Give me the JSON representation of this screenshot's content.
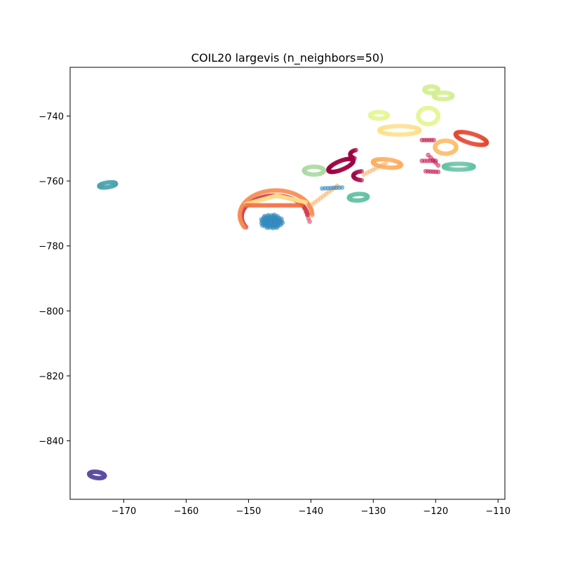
{
  "chart_data": {
    "type": "scatter",
    "title": "COIL20 largevis (n_neighbors=50)",
    "xlabel": "",
    "ylabel": "",
    "xlim": [
      -178.6,
      -108.9
    ],
    "ylim": [
      -858.0,
      -725.0
    ],
    "xticks": [
      -170,
      -160,
      -150,
      -140,
      -130,
      -120,
      -110
    ],
    "yticks": [
      -840,
      -820,
      -800,
      -780,
      -760,
      -740
    ],
    "xtick_labels": [
      "−170",
      "−160",
      "−150",
      "−140",
      "−130",
      "−120",
      "−110"
    ],
    "ytick_labels": [
      "−840",
      "−820",
      "−800",
      "−780",
      "−760",
      "−740"
    ],
    "grid": false,
    "legend": "none",
    "marker_opacity": 0.55,
    "series": [
      {
        "color": "#5e4fa2",
        "shape": "loop",
        "center": [
          -174.3,
          -850.5
        ],
        "radii": [
          1.3,
          0.9
        ],
        "angle": -25,
        "points": 60
      },
      {
        "color": "#4ba4b1",
        "shape": "loop",
        "center": [
          -172.6,
          -761.2
        ],
        "radii": [
          1.4,
          0.7
        ],
        "angle": 20,
        "points": 40
      },
      {
        "color": "#3288bd",
        "shape": "blob",
        "center": [
          -146.3,
          -772.5
        ],
        "radii": [
          1.8,
          2.2
        ],
        "angle": 0,
        "points": 70
      },
      {
        "color": "#d53e4f",
        "shape": "arc",
        "center": [
          -145.8,
          -771.0
        ],
        "radii": [
          5.3,
          6.5
        ],
        "start": 150,
        "end": 355,
        "points": 90
      },
      {
        "color": "#f88d52",
        "shape": "arc",
        "center": [
          -145.6,
          -770.5
        ],
        "radii": [
          5.8,
          7.6
        ],
        "start": 150,
        "end": 360,
        "points": 90
      },
      {
        "color": "#fee08b",
        "shape": "line",
        "from": [
          -150.5,
          -767.2
        ],
        "to": [
          -145.5,
          -764.5
        ],
        "points": 30
      },
      {
        "color": "#fee08b",
        "shape": "line",
        "from": [
          -145.5,
          -764.5
        ],
        "to": [
          -140.8,
          -766.6
        ],
        "points": 30
      },
      {
        "color": "#f46d43",
        "shape": "line",
        "from": [
          -150.5,
          -767.5
        ],
        "to": [
          -141.5,
          -767.5
        ],
        "points": 40
      },
      {
        "color": "#fdae61",
        "shape": "line",
        "from": [
          -139.8,
          -767.2
        ],
        "to": [
          -135.8,
          -761.5
        ],
        "points": 10
      },
      {
        "color": "#3288bd",
        "shape": "line",
        "from": [
          -138.2,
          -762.3
        ],
        "to": [
          -135.0,
          -762.0
        ],
        "points": 8
      },
      {
        "color": "#d53e4f",
        "shape": "line",
        "from": [
          -141.0,
          -768.5
        ],
        "to": [
          -140.2,
          -772.5
        ],
        "points": 5
      },
      {
        "color": "#9e0142",
        "shape": "loop",
        "center": [
          -135.2,
          -755.2
        ],
        "radii": [
          2.6,
          1.1
        ],
        "angle": 45,
        "points": 70
      },
      {
        "color": "#9e0142",
        "shape": "arc",
        "center": [
          -132.3,
          -751.8
        ],
        "radii": [
          1.4,
          1.4
        ],
        "start": 120,
        "end": 250,
        "points": 14
      },
      {
        "color": "#9e0142",
        "shape": "arc",
        "center": [
          -131.6,
          -758.4
        ],
        "radii": [
          1.6,
          1.4
        ],
        "start": 100,
        "end": 260,
        "points": 16
      },
      {
        "color": "#abdda4",
        "shape": "loop",
        "center": [
          -139.5,
          -756.8
        ],
        "radii": [
          1.6,
          1.2
        ],
        "angle": 0,
        "points": 50
      },
      {
        "color": "#66c2a5",
        "shape": "loop",
        "center": [
          -132.4,
          -765.0
        ],
        "radii": [
          1.5,
          1.0
        ],
        "angle": 10,
        "points": 50
      },
      {
        "color": "#fdae61",
        "shape": "loop",
        "center": [
          -127.8,
          -754.6
        ],
        "radii": [
          2.3,
          1.2
        ],
        "angle": -15,
        "points": 60
      },
      {
        "color": "#fdae61",
        "shape": "line",
        "from": [
          -131.5,
          -758.0
        ],
        "to": [
          -128.0,
          -754.5
        ],
        "points": 8
      },
      {
        "color": "#e6f598",
        "shape": "loop",
        "center": [
          -129.1,
          -739.8
        ],
        "radii": [
          1.4,
          1.0
        ],
        "angle": 0,
        "points": 40
      },
      {
        "color": "#fee08b",
        "shape": "loop",
        "center": [
          -125.8,
          -744.4
        ],
        "radii": [
          3.2,
          1.3
        ],
        "angle": 0,
        "points": 70
      },
      {
        "color": "#e6f598",
        "shape": "loop",
        "center": [
          -121.2,
          -740.0
        ],
        "radii": [
          1.6,
          2.5
        ],
        "angle": 0,
        "points": 60
      },
      {
        "color": "#d5ee94",
        "shape": "loop",
        "center": [
          -120.7,
          -731.9
        ],
        "radii": [
          1.1,
          1.0
        ],
        "angle": 0,
        "points": 36
      },
      {
        "color": "#d5ee94",
        "shape": "loop",
        "center": [
          -118.8,
          -733.8
        ],
        "radii": [
          1.5,
          1.0
        ],
        "angle": 0,
        "points": 36
      },
      {
        "color": "#fdbf6f",
        "shape": "loop",
        "center": [
          -118.4,
          -749.6
        ],
        "radii": [
          1.7,
          2.0
        ],
        "angle": 0,
        "points": 55
      },
      {
        "color": "#e34a33",
        "shape": "loop",
        "center": [
          -114.3,
          -746.9
        ],
        "radii": [
          2.9,
          1.3
        ],
        "angle": -35,
        "points": 70
      },
      {
        "color": "#66c2a5",
        "shape": "loop",
        "center": [
          -116.3,
          -755.6
        ],
        "radii": [
          2.4,
          0.9
        ],
        "angle": 0,
        "points": 55
      },
      {
        "color": "#c51b4f",
        "shape": "line",
        "from": [
          -122.2,
          -747.4
        ],
        "to": [
          -120.3,
          -747.4
        ],
        "points": 6
      },
      {
        "color": "#c51b4f",
        "shape": "line",
        "from": [
          -122.2,
          -753.8
        ],
        "to": [
          -120.0,
          -753.8
        ],
        "points": 6
      },
      {
        "color": "#c51b4f",
        "shape": "line",
        "from": [
          -121.2,
          -752.0
        ],
        "to": [
          -119.6,
          -755.2
        ],
        "points": 5
      },
      {
        "color": "#c51b4f",
        "shape": "line",
        "from": [
          -121.6,
          -757.0
        ],
        "to": [
          -119.6,
          -757.2
        ],
        "points": 6
      }
    ]
  }
}
